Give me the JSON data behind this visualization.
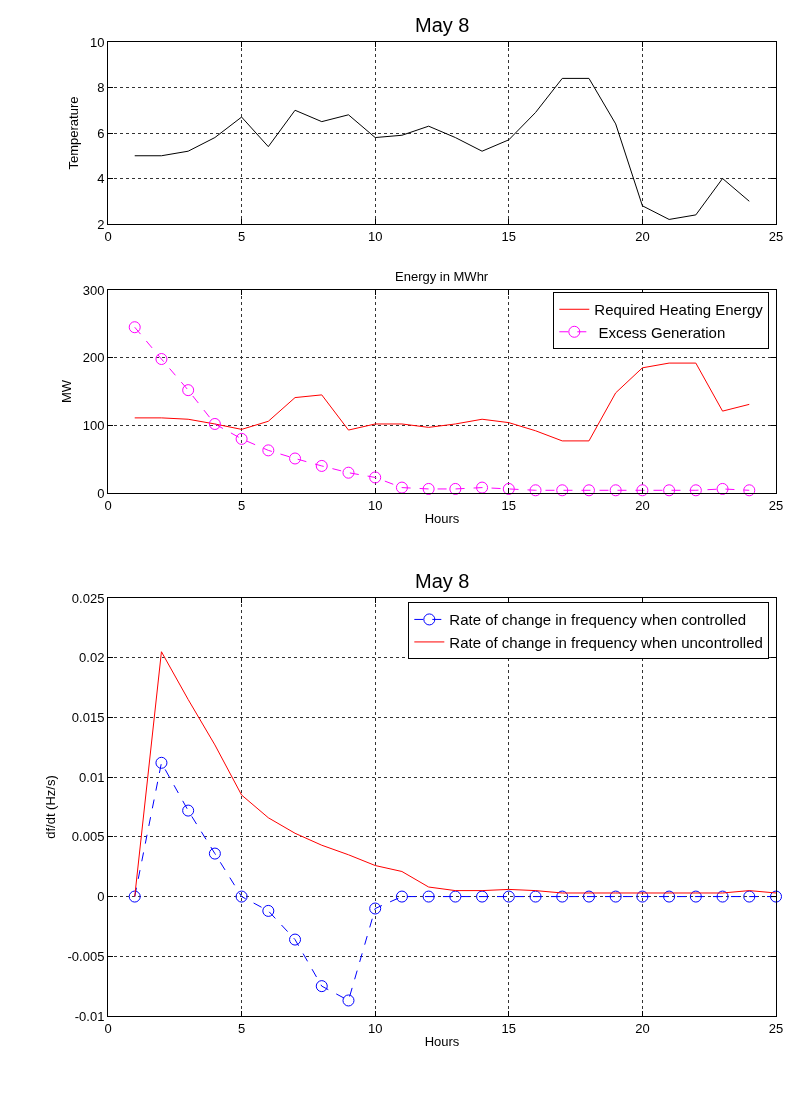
{
  "chart_data": [
    {
      "type": "line",
      "title": "May 8",
      "ylabel": "Temperature",
      "x": [
        1,
        2,
        3,
        4,
        5,
        6,
        7,
        8,
        9,
        10,
        11,
        12,
        13,
        14,
        15,
        16,
        17,
        18,
        19,
        20,
        21,
        22,
        23,
        24
      ],
      "xlim": [
        0,
        25
      ],
      "xticks": [
        0,
        5,
        10,
        15,
        20,
        25
      ],
      "ylim": [
        2,
        10
      ],
      "yticks": [
        2,
        4,
        6,
        8,
        10
      ],
      "grid": true,
      "legend": false,
      "series": [
        {
          "color": "#000000",
          "line_style": "solid",
          "marker": "none",
          "values": [
            5.0,
            5.0,
            5.2,
            5.8,
            6.7,
            5.4,
            7.0,
            6.5,
            6.8,
            5.8,
            5.9,
            6.3,
            5.8,
            5.2,
            5.7,
            6.9,
            8.4,
            8.4,
            6.4,
            2.8,
            2.2,
            2.4,
            4.0,
            3.0
          ]
        }
      ]
    },
    {
      "type": "line",
      "title": "Energy in MWhr",
      "xlabel": "Hours",
      "ylabel": "MW",
      "x": [
        1,
        2,
        3,
        4,
        5,
        6,
        7,
        8,
        9,
        10,
        11,
        12,
        13,
        14,
        15,
        16,
        17,
        18,
        19,
        20,
        21,
        22,
        23,
        24
      ],
      "xlim": [
        0,
        25
      ],
      "xticks": [
        0,
        5,
        10,
        15,
        20,
        25
      ],
      "ylim": [
        0,
        300
      ],
      "yticks": [
        0,
        100,
        200,
        300
      ],
      "grid": true,
      "legend": "top right",
      "series": [
        {
          "name": "Required Heating Energy",
          "color": "#ff0000",
          "line_style": "solid",
          "marker": "none",
          "values": [
            111,
            111,
            109,
            102,
            94,
            106,
            141,
            145,
            93,
            102,
            102,
            97,
            102,
            109,
            104,
            92,
            77,
            77,
            148,
            185,
            192,
            192,
            121,
            131
          ]
        },
        {
          "name": " Excess Generation",
          "color": "#ff00ff",
          "line_style": "dashed",
          "marker": "circle",
          "values": [
            245,
            198,
            152,
            102,
            80,
            63,
            51,
            40,
            30,
            23,
            8,
            6,
            6,
            8,
            6,
            4,
            4,
            4,
            4,
            4,
            4,
            4,
            6,
            4
          ]
        }
      ]
    },
    {
      "type": "line",
      "title": "May 8",
      "xlabel": "Hours",
      "ylabel": "df/dt (Hz/s)",
      "x": [
        1,
        2,
        3,
        4,
        5,
        6,
        7,
        8,
        9,
        10,
        11,
        12,
        13,
        14,
        15,
        16,
        17,
        18,
        19,
        20,
        21,
        22,
        23,
        24,
        25
      ],
      "xlim": [
        0,
        25
      ],
      "xticks": [
        0,
        5,
        10,
        15,
        20,
        25
      ],
      "ylim": [
        -0.01,
        0.025
      ],
      "yticks": [
        -0.01,
        -0.005,
        0,
        0.005,
        0.01,
        0.015,
        0.02,
        0.025
      ],
      "grid": true,
      "legend": "top right",
      "series": [
        {
          "name": "Rate of change in frequency when controlled",
          "color": "#0000ff",
          "line_style": "dashed",
          "marker": "circle",
          "values": [
            0,
            0.0112,
            0.0072,
            0.0036,
            0,
            -0.0012,
            -0.0036,
            -0.0075,
            -0.0087,
            -0.001,
            0,
            0,
            0,
            0,
            0,
            0,
            0,
            0,
            0,
            0,
            0,
            0,
            0,
            0,
            0
          ]
        },
        {
          "name": "Rate of change in frequency when uncontrolled",
          "color": "#ff0000",
          "line_style": "solid",
          "marker": "none",
          "values": [
            0,
            0.0205,
            0.0165,
            0.0127,
            0.0085,
            0.0066,
            0.0053,
            0.0043,
            0.0035,
            0.0026,
            0.0021,
            0.0008,
            0.0005,
            0.0005,
            0.0006,
            0.0005,
            0.0003,
            0.0003,
            0.0003,
            0.0003,
            0.0003,
            0.0003,
            0.0003,
            0.0005,
            0.0003
          ]
        }
      ]
    }
  ]
}
